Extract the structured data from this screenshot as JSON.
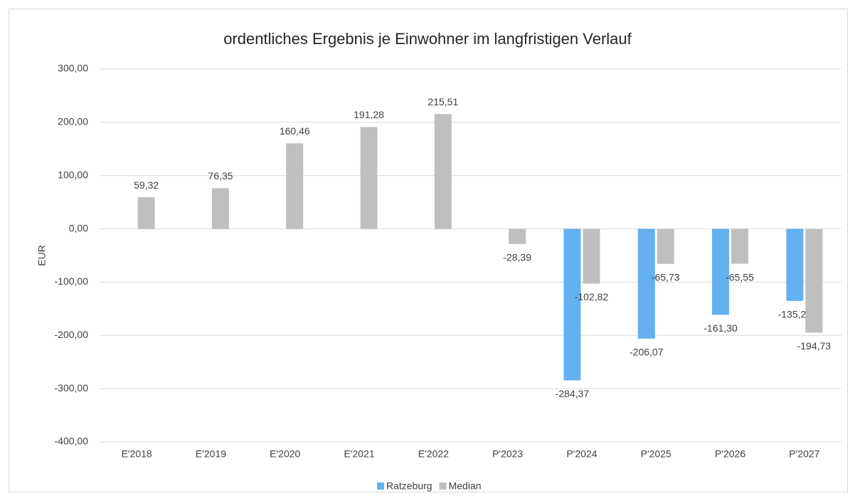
{
  "chart_data": {
    "type": "bar",
    "title": "ordentliches Ergebnis je Einwohner im langfristigen Verlauf",
    "y_label": "EUR",
    "categories": [
      "E'2018",
      "E'2019",
      "E'2020",
      "E'2021",
      "E'2022",
      "P'2023",
      "P'2024",
      "P'2025",
      "P'2026",
      "P'2027"
    ],
    "series": [
      {
        "name": "Ratzeburg",
        "color": "#63b1f0",
        "values": [
          null,
          null,
          null,
          null,
          null,
          null,
          -284.37,
          -206.07,
          -161.3,
          -135.24
        ],
        "value_labels": [
          null,
          null,
          null,
          null,
          null,
          null,
          "-284,37",
          "-206,07",
          "-161,30",
          "-135,24"
        ]
      },
      {
        "name": "Median",
        "color": "#bfbfbf",
        "values": [
          59.32,
          76.35,
          160.46,
          191.28,
          215.51,
          -28.39,
          -102.82,
          -65.73,
          -65.55,
          -194.73
        ],
        "value_labels": [
          "59,32",
          "76,35",
          "160,46",
          "191,28",
          "215,51",
          "-28,39",
          "-102,82",
          "-65,73",
          "-65,55",
          "-194,73"
        ]
      }
    ],
    "ylim": [
      -400,
      300
    ],
    "yticks": [
      {
        "value": -400,
        "label": "-400,00"
      },
      {
        "value": -300,
        "label": "-300,00"
      },
      {
        "value": -200,
        "label": "-200,00"
      },
      {
        "value": -100,
        "label": "-100,00"
      },
      {
        "value": 0,
        "label": "0,00"
      },
      {
        "value": 100,
        "label": "100,00"
      },
      {
        "value": 200,
        "label": "200,00"
      },
      {
        "value": 300,
        "label": "300,00"
      }
    ],
    "grid": true,
    "legend": "bottom"
  }
}
